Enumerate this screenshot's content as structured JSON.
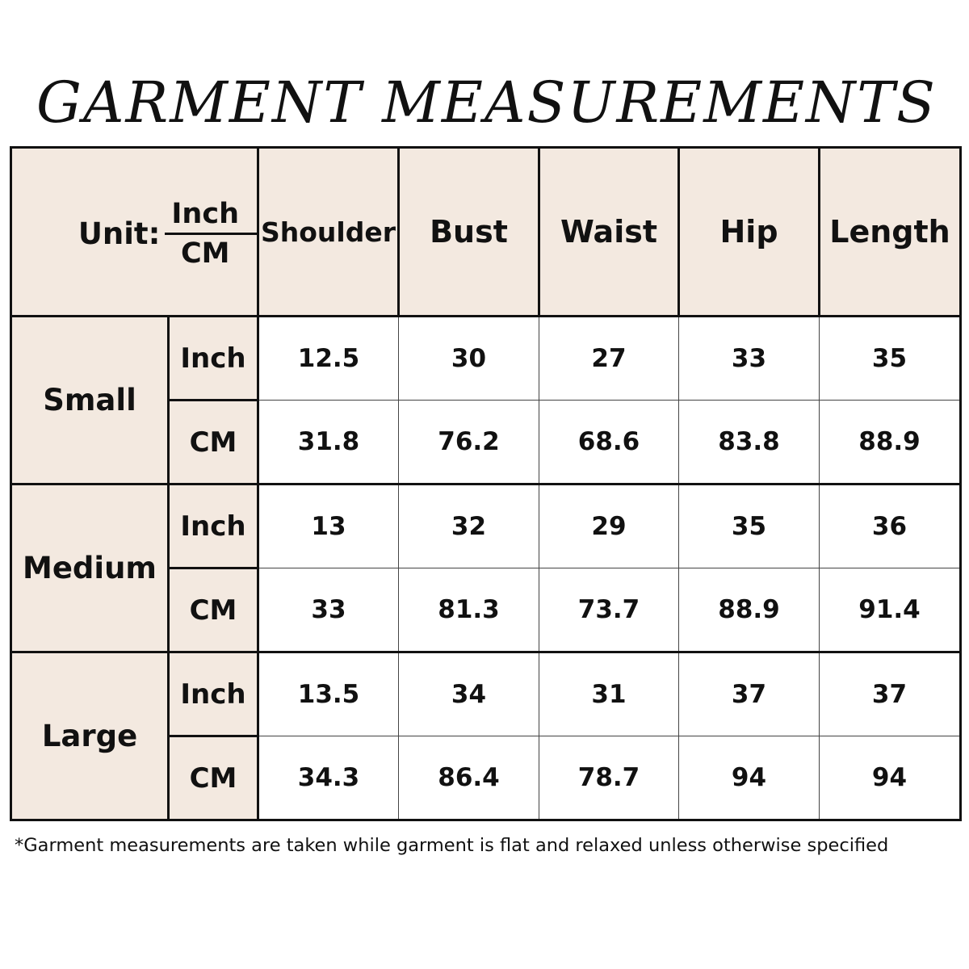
{
  "title": "GARMENT MEASUREMENTS",
  "colors": {
    "header_bg": "#f3e9e0",
    "border": "#111111"
  },
  "unit_cell": {
    "label": "Unit:",
    "numerator": "Inch",
    "denominator": "CM"
  },
  "columns": [
    "Shoulder",
    "Bust",
    "Waist",
    "Hip",
    "Length"
  ],
  "sizes": [
    {
      "name": "Small",
      "rows": [
        {
          "unit": "Inch",
          "values": [
            "12.5",
            "30",
            "27",
            "33",
            "35"
          ]
        },
        {
          "unit": "CM",
          "values": [
            "31.8",
            "76.2",
            "68.6",
            "83.8",
            "88.9"
          ]
        }
      ]
    },
    {
      "name": "Medium",
      "rows": [
        {
          "unit": "Inch",
          "values": [
            "13",
            "32",
            "29",
            "35",
            "36"
          ]
        },
        {
          "unit": "CM",
          "values": [
            "33",
            "81.3",
            "73.7",
            "88.9",
            "91.4"
          ]
        }
      ]
    },
    {
      "name": "Large",
      "rows": [
        {
          "unit": "Inch",
          "values": [
            "13.5",
            "34",
            "31",
            "37",
            "37"
          ]
        },
        {
          "unit": "CM",
          "values": [
            "34.3",
            "86.4",
            "78.7",
            "94",
            "94"
          ]
        }
      ]
    }
  ],
  "footnote": "*Garment measurements are taken while garment is flat and relaxed unless otherwise specified"
}
